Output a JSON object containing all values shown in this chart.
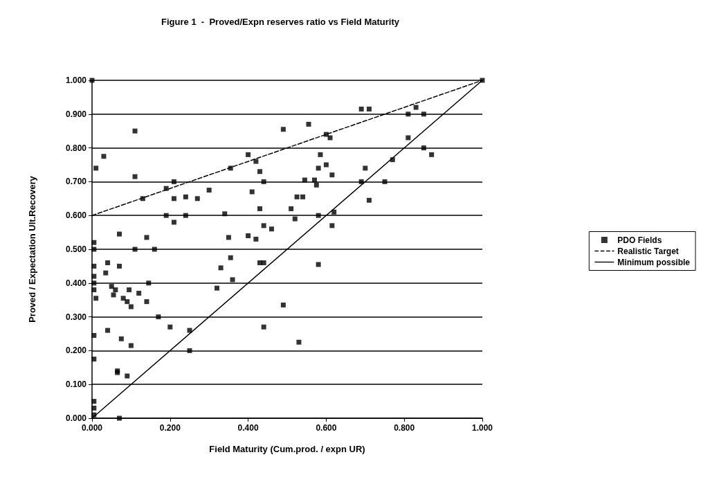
{
  "chart_data": {
    "type": "scatter",
    "title": "Figure 1  -  Proved/Expn reserves ratio vs Field Maturity",
    "xlabel": "Field Maturity (Cum.prod. / expn UR)",
    "ylabel": "Proved / Expectation Ult.Recovery",
    "xlim": [
      0,
      1
    ],
    "ylim": [
      0,
      1
    ],
    "xticks": [
      {
        "value": 0,
        "label": "0.000"
      },
      {
        "value": 0.2,
        "label": "0.200"
      },
      {
        "value": 0.4,
        "label": "0.400"
      },
      {
        "value": 0.6,
        "label": "0.600"
      },
      {
        "value": 0.8,
        "label": "0.800"
      },
      {
        "value": 1,
        "label": "1.000"
      }
    ],
    "yticks": [
      {
        "value": 0,
        "label": "0.000"
      },
      {
        "value": 0.1,
        "label": "0.100"
      },
      {
        "value": 0.2,
        "label": "0.200"
      },
      {
        "value": 0.3,
        "label": "0.300"
      },
      {
        "value": 0.4,
        "label": "0.400"
      },
      {
        "value": 0.5,
        "label": "0.500"
      },
      {
        "value": 0.6,
        "label": "0.600"
      },
      {
        "value": 0.7,
        "label": "0.700"
      },
      {
        "value": 0.8,
        "label": "0.800"
      },
      {
        "value": 0.9,
        "label": "0.900"
      },
      {
        "value": 1,
        "label": "1.000"
      }
    ],
    "grid": "y",
    "legend": "right",
    "series": [
      {
        "name": "PDO Fields",
        "type": "scatter",
        "color": "#000000",
        "marker": "square",
        "x": [
          0,
          0.01,
          0.03,
          0.11,
          0.11,
          0.13,
          0.21,
          0.19,
          0.19,
          0.21,
          0.21,
          0.24,
          0.24,
          0.27,
          0.3,
          0.34,
          0.355,
          0.4,
          0.42,
          0.41,
          0.43,
          0.44,
          0.43,
          0.44,
          0.46,
          0.4,
          0.42,
          0.35,
          0.355,
          0.36,
          0.33,
          0.32,
          0.43,
          0.44,
          0.49,
          0.555,
          0.51,
          0.52,
          0.525,
          0.54,
          0.545,
          0.57,
          0.575,
          0.58,
          0.585,
          0.6,
          0.6,
          0.61,
          0.615,
          0.62,
          0.615,
          0.58,
          0.58,
          0.49,
          0.44,
          0.53,
          0.69,
          0.71,
          0.69,
          0.7,
          0.71,
          0.75,
          0.77,
          0.81,
          0.83,
          0.85,
          0.81,
          0.85,
          0.87,
          1,
          0.005,
          0.005,
          0.005,
          0.005,
          0.005,
          0.005,
          0.005,
          0.005,
          0.005,
          0.005,
          0.005,
          0.01,
          0.035,
          0.04,
          0.04,
          0.05,
          0.055,
          0.06,
          0.065,
          0.065,
          0.07,
          0.07,
          0.075,
          0.07,
          0.08,
          0.09,
          0.095,
          0.1,
          0.09,
          0.1,
          0.11,
          0.12,
          0.14,
          0.14,
          0.145,
          0.16,
          0.17,
          0.2,
          0.25,
          0.25
        ],
        "values": [
          1,
          0.74,
          0.775,
          0.85,
          0.715,
          0.65,
          0.7,
          0.68,
          0.6,
          0.65,
          0.58,
          0.655,
          0.6,
          0.65,
          0.675,
          0.605,
          0.74,
          0.78,
          0.76,
          0.67,
          0.73,
          0.7,
          0.62,
          0.57,
          0.56,
          0.54,
          0.53,
          0.535,
          0.475,
          0.41,
          0.445,
          0.385,
          0.46,
          0.46,
          0.855,
          0.87,
          0.62,
          0.59,
          0.655,
          0.655,
          0.705,
          0.705,
          0.69,
          0.74,
          0.78,
          0.75,
          0.84,
          0.83,
          0.72,
          0.61,
          0.57,
          0.6,
          0.455,
          0.335,
          0.27,
          0.225,
          0.915,
          0.915,
          0.7,
          0.74,
          0.645,
          0.7,
          0.765,
          0.9,
          0.92,
          0.9,
          0.83,
          0.8,
          0.78,
          1,
          0.52,
          0.5,
          0.45,
          0.42,
          0.4,
          0.38,
          0.245,
          0.175,
          0.05,
          0.03,
          0.01,
          0.355,
          0.43,
          0.46,
          0.26,
          0.39,
          0.365,
          0.38,
          0.14,
          0.135,
          0.45,
          0.545,
          0.235,
          0,
          0.355,
          0.345,
          0.38,
          0.33,
          0.125,
          0.215,
          0.5,
          0.37,
          0.345,
          0.535,
          0.4,
          0.5,
          0.3,
          0.27,
          0.26,
          0.2
        ]
      },
      {
        "name": "Realistic Target",
        "type": "line",
        "color": "#000000",
        "marker": "none",
        "line_style": "dashed",
        "x": [
          0,
          1
        ],
        "values": [
          0.6,
          1
        ]
      },
      {
        "name": "Minimum possible",
        "type": "line",
        "color": "#000000",
        "marker": "none",
        "line_style": "solid",
        "x": [
          0,
          1
        ],
        "values": [
          0,
          1
        ]
      }
    ]
  }
}
